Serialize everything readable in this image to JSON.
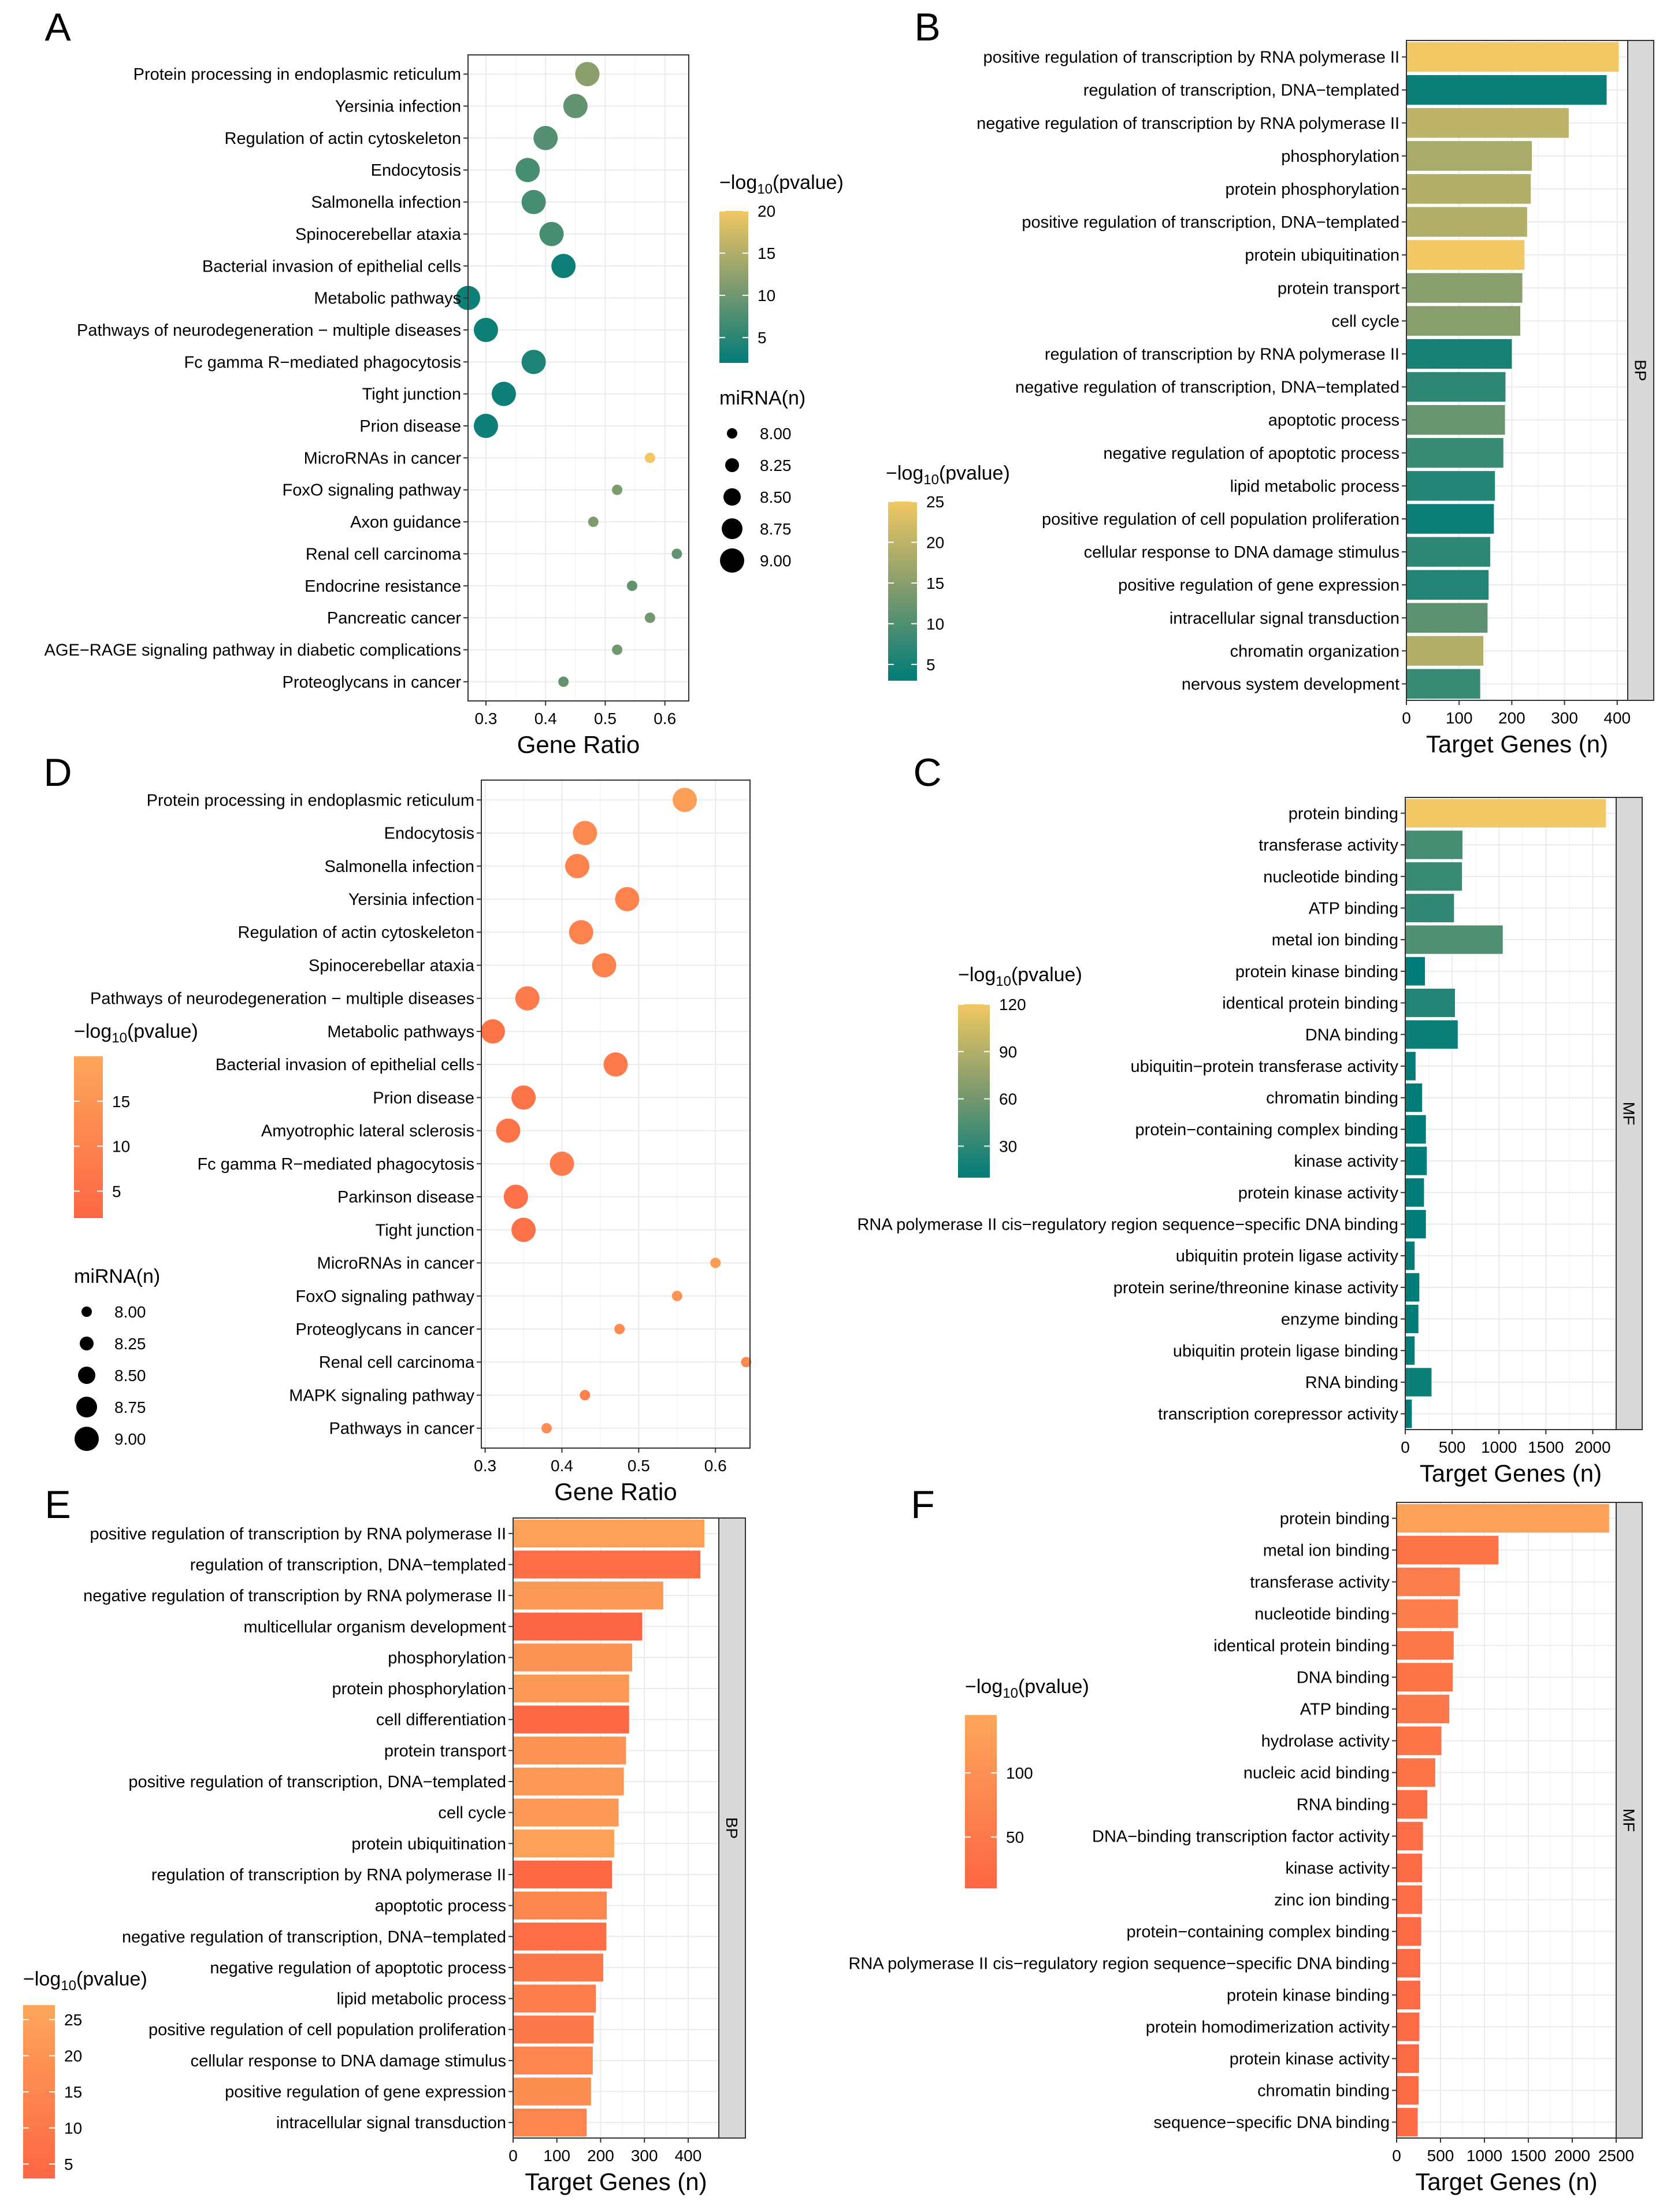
{
  "colors": {
    "teal_low": "#007C78",
    "gold_high": "#F1C863",
    "orange_high": "#FDA65B",
    "red_low": "#FD6644",
    "grid": "#EBEBEB",
    "strip": "#D9D9D9"
  },
  "chart_data": [
    {
      "id": "A",
      "panel_label": "A",
      "type": "scatter",
      "palette": "teal",
      "xlabel": "Gene Ratio",
      "xlim": [
        0.27,
        0.64
      ],
      "xticks": [
        0.3,
        0.4,
        0.5,
        0.6
      ],
      "xtick_labels": [
        "0.3",
        "0.4",
        "0.5",
        "0.6"
      ],
      "categories": [
        "Protein processing in endoplasmic reticulum",
        "Yersinia infection",
        "Regulation of actin cytoskeleton",
        "Endocytosis",
        "Salmonella infection",
        "Spinocerebellar ataxia",
        "Bacterial invasion of epithelial cells",
        "Metabolic pathways",
        "Pathways of neurodegeneration − multiple diseases",
        "Fc gamma R−mediated phagocytosis",
        "Tight junction",
        "Prion disease",
        "MicroRNAs in cancer",
        "FoxO signaling pathway",
        "Axon guidance",
        "Renal cell carcinoma",
        "Endocrine resistance",
        "Pancreatic cancer",
        "AGE−RAGE signaling pathway in diabetic complications",
        "Proteoglycans in cancer"
      ],
      "x": [
        0.47,
        0.45,
        0.4,
        0.37,
        0.38,
        0.41,
        0.43,
        0.27,
        0.3,
        0.38,
        0.33,
        0.3,
        0.575,
        0.52,
        0.48,
        0.62,
        0.545,
        0.575,
        0.52,
        0.43
      ],
      "size": [
        9.0,
        9.0,
        9.0,
        9.0,
        9.0,
        9.0,
        9.0,
        9.0,
        9.0,
        9.0,
        9.0,
        9.0,
        8.0,
        8.0,
        8.0,
        8.0,
        8.0,
        8.0,
        8.0,
        8.0
      ],
      "color": [
        12,
        9,
        8,
        7,
        7,
        7,
        3,
        3,
        3,
        4,
        3,
        3,
        20,
        11,
        11,
        9,
        9,
        10,
        10,
        9
      ],
      "color_legend": {
        "title": "−log",
        "sub": "10",
        "rest": "(pvalue)",
        "lim": [
          2,
          20
        ],
        "ticks": [
          5,
          10,
          15,
          20
        ],
        "tick_labels": [
          "5",
          "10",
          "15",
          "20"
        ]
      },
      "size_legend": {
        "title": "miRNA(n)",
        "values": [
          8.0,
          8.25,
          8.5,
          8.75,
          9.0
        ],
        "labels": [
          "8.00",
          "8.25",
          "8.50",
          "8.75",
          "9.00"
        ]
      }
    },
    {
      "id": "B",
      "panel_label": "B",
      "type": "bar",
      "palette": "teal",
      "facet": "BP",
      "xlabel": "Target Genes (n)",
      "xlim": [
        0,
        420
      ],
      "xticks": [
        0,
        100,
        200,
        300,
        400
      ],
      "xtick_labels": [
        "0",
        "100",
        "200",
        "300",
        "400"
      ],
      "categories": [
        "positive regulation of transcription by RNA polymerase II",
        "regulation of transcription, DNA−templated",
        "negative regulation of transcription by RNA polymerase II",
        "phosphorylation",
        "protein phosphorylation",
        "positive regulation of transcription, DNA−templated",
        "protein ubiquitination",
        "protein transport",
        "cell cycle",
        "regulation of transcription by RNA polymerase II",
        "negative regulation of transcription, DNA−templated",
        "apoptotic process",
        "negative regulation of apoptotic process",
        "lipid metabolic process",
        "positive regulation of cell population proliferation",
        "cellular response to DNA damage stimulus",
        "positive regulation of gene expression",
        "intracellular signal transduction",
        "chromatin organization",
        "nervous system development"
      ],
      "values": [
        403,
        380,
        308,
        238,
        236,
        229,
        224,
        220,
        216,
        200,
        188,
        187,
        184,
        168,
        166,
        159,
        156,
        154,
        146,
        140
      ],
      "color": [
        25,
        4,
        20,
        18,
        19,
        19,
        25,
        15,
        15,
        5,
        7,
        12,
        8,
        6,
        4,
        7,
        6,
        11,
        19,
        8
      ],
      "color_legend": {
        "title": "−log",
        "sub": "10",
        "rest": "(pvalue)",
        "lim": [
          3,
          25
        ],
        "ticks": [
          5,
          10,
          15,
          20,
          25
        ],
        "tick_labels": [
          "5",
          "10",
          "15",
          "20",
          "25"
        ]
      }
    },
    {
      "id": "D",
      "panel_label": "D",
      "type": "scatter",
      "palette": "orange",
      "xlabel": "Gene Ratio",
      "xlim": [
        0.295,
        0.645
      ],
      "xticks": [
        0.3,
        0.4,
        0.5,
        0.6
      ],
      "xtick_labels": [
        "0.3",
        "0.4",
        "0.5",
        "0.6"
      ],
      "categories": [
        "Protein processing in endoplasmic reticulum",
        "Endocytosis",
        "Salmonella infection",
        "Yersinia infection",
        "Regulation of actin cytoskeleton",
        "Spinocerebellar ataxia",
        "Pathways of neurodegeneration − multiple diseases",
        "Metabolic pathways",
        "Bacterial invasion of epithelial cells",
        "Prion disease",
        "Amyotrophic lateral sclerosis",
        "Fc gamma R−mediated phagocytosis",
        "Parkinson disease",
        "Tight junction",
        "MicroRNAs in cancer",
        "FoxO signaling pathway",
        "Proteoglycans in cancer",
        "Renal cell carcinoma",
        "MAPK signaling pathway",
        "Pathways in cancer"
      ],
      "x": [
        0.56,
        0.43,
        0.42,
        0.485,
        0.425,
        0.455,
        0.355,
        0.31,
        0.47,
        0.35,
        0.33,
        0.4,
        0.34,
        0.35,
        0.6,
        0.55,
        0.475,
        0.64,
        0.43,
        0.38
      ],
      "size": [
        9.0,
        9.0,
        9.0,
        9.0,
        9.0,
        9.0,
        9.0,
        9.0,
        9.0,
        9.0,
        9.0,
        9.0,
        9.0,
        9.0,
        8.0,
        8.0,
        8.0,
        8.0,
        8.0,
        8.0
      ],
      "color": [
        18,
        12,
        10,
        10,
        10,
        10,
        8,
        6,
        8,
        6,
        6,
        8,
        5,
        5,
        17,
        15,
        12,
        12,
        10,
        13
      ],
      "color_legend": {
        "title": "−log",
        "sub": "10",
        "rest": "(pvalue)",
        "lim": [
          2,
          20
        ],
        "ticks": [
          5,
          10,
          15
        ],
        "tick_labels": [
          "5",
          "10",
          "15"
        ]
      },
      "size_legend": {
        "title": "miRNA(n)",
        "values": [
          8.0,
          8.25,
          8.5,
          8.75,
          9.0
        ],
        "labels": [
          "8.00",
          "8.25",
          "8.50",
          "8.75",
          "9.00"
        ]
      }
    },
    {
      "id": "C",
      "panel_label": "C",
      "type": "bar",
      "palette": "teal",
      "facet": "MF",
      "xlabel": "Target Genes (n)",
      "xlim": [
        0,
        2250
      ],
      "xticks": [
        0,
        500,
        1000,
        1500,
        2000
      ],
      "xtick_labels": [
        "0",
        "500",
        "1000",
        "1500",
        "2000"
      ],
      "categories": [
        "protein binding",
        "transferase activity",
        "nucleotide binding",
        "ATP binding",
        "metal ion binding",
        "protein kinase binding",
        "identical protein binding",
        "DNA binding",
        "ubiquitin−protein transferase activity",
        "chromatin binding",
        "protein−containing complex binding",
        "kinase activity",
        "protein kinase activity",
        "RNA polymerase II cis−regulatory region sequence−specific DNA binding",
        "ubiquitin protein ligase activity",
        "protein serine/threonine kinase activity",
        "enzyme binding",
        "ubiquitin protein ligase binding",
        "RNA binding",
        "transcription corepressor activity"
      ],
      "values": [
        2140,
        610,
        605,
        520,
        1040,
        210,
        530,
        560,
        110,
        180,
        220,
        230,
        200,
        220,
        100,
        150,
        140,
        100,
        280,
        70
      ],
      "color": [
        120,
        40,
        35,
        32,
        45,
        10,
        25,
        15,
        10,
        10,
        10,
        10,
        10,
        10,
        10,
        10,
        10,
        10,
        15,
        10
      ],
      "color_legend": {
        "title": "−log",
        "sub": "10",
        "rest": "(pvalue)",
        "lim": [
          10,
          120
        ],
        "ticks": [
          30,
          60,
          90,
          120
        ],
        "tick_labels": [
          "30",
          "60",
          "90",
          "120"
        ]
      }
    },
    {
      "id": "E",
      "panel_label": "E",
      "type": "bar",
      "palette": "orange",
      "facet": "BP",
      "xlabel": "Target Genes (n)",
      "xlim": [
        0,
        470
      ],
      "xticks": [
        0,
        100,
        200,
        300,
        400
      ],
      "xtick_labels": [
        "0",
        "100",
        "200",
        "300",
        "400"
      ],
      "categories": [
        "positive regulation of transcription by RNA polymerase II",
        "regulation of transcription, DNA−templated",
        "negative regulation of transcription by RNA polymerase II",
        "multicellular organism development",
        "phosphorylation",
        "protein phosphorylation",
        "cell differentiation",
        "protein transport",
        "positive regulation of transcription, DNA−templated",
        "cell cycle",
        "protein ubiquitination",
        "regulation of transcription by RNA polymerase II",
        "apoptotic process",
        "negative regulation of transcription, DNA−templated",
        "negative regulation of apoptotic process",
        "lipid metabolic process",
        "positive regulation of cell population proliferation",
        "cellular response to DNA damage stimulus",
        "positive regulation of gene expression",
        "intracellular signal transduction"
      ],
      "values": [
        437,
        428,
        343,
        295,
        272,
        265,
        265,
        258,
        253,
        241,
        231,
        226,
        214,
        213,
        206,
        189,
        184,
        182,
        178,
        168
      ],
      "color": [
        25,
        6,
        22,
        3,
        20,
        22,
        4,
        20,
        22,
        22,
        25,
        4,
        15,
        6,
        10,
        12,
        10,
        15,
        18,
        15
      ],
      "color_legend": {
        "title": "−log",
        "sub": "10",
        "rest": "(pvalue)",
        "lim": [
          3,
          27
        ],
        "ticks": [
          5,
          10,
          15,
          20,
          25
        ],
        "tick_labels": [
          "5",
          "10",
          "15",
          "20",
          "25"
        ]
      }
    },
    {
      "id": "F",
      "panel_label": "F",
      "type": "bar",
      "palette": "orange",
      "facet": "MF",
      "xlabel": "Target Genes (n)",
      "xlim": [
        0,
        2500
      ],
      "xticks": [
        0,
        500,
        1000,
        1500,
        2000,
        2500
      ],
      "xtick_labels": [
        "0",
        "500",
        "1000",
        "1500",
        "2000",
        "2500"
      ],
      "categories": [
        "protein binding",
        "metal ion binding",
        "transferase activity",
        "nucleotide binding",
        "identical protein binding",
        "DNA binding",
        "ATP binding",
        "hydrolase activity",
        "nucleic acid binding",
        "RNA binding",
        "DNA−binding transcription factor activity",
        "kinase activity",
        "zinc ion binding",
        "protein−containing complex binding",
        "RNA polymerase II cis−regulatory region sequence−specific DNA binding",
        "protein kinase binding",
        "protein homodimerization activity",
        "protein kinase activity",
        "chromatin binding",
        "sequence−specific DNA binding"
      ],
      "values": [
        2420,
        1160,
        720,
        700,
        650,
        640,
        600,
        510,
        440,
        350,
        300,
        290,
        290,
        280,
        270,
        270,
        260,
        255,
        250,
        240
      ],
      "color": [
        135,
        40,
        60,
        60,
        50,
        40,
        50,
        40,
        40,
        30,
        25,
        20,
        25,
        20,
        20,
        20,
        20,
        20,
        20,
        20
      ],
      "color_legend": {
        "title": "−log",
        "sub": "10",
        "rest": "(pvalue)",
        "lim": [
          10,
          145
        ],
        "ticks": [
          50,
          100
        ],
        "tick_labels": [
          "50",
          "100"
        ]
      }
    }
  ]
}
